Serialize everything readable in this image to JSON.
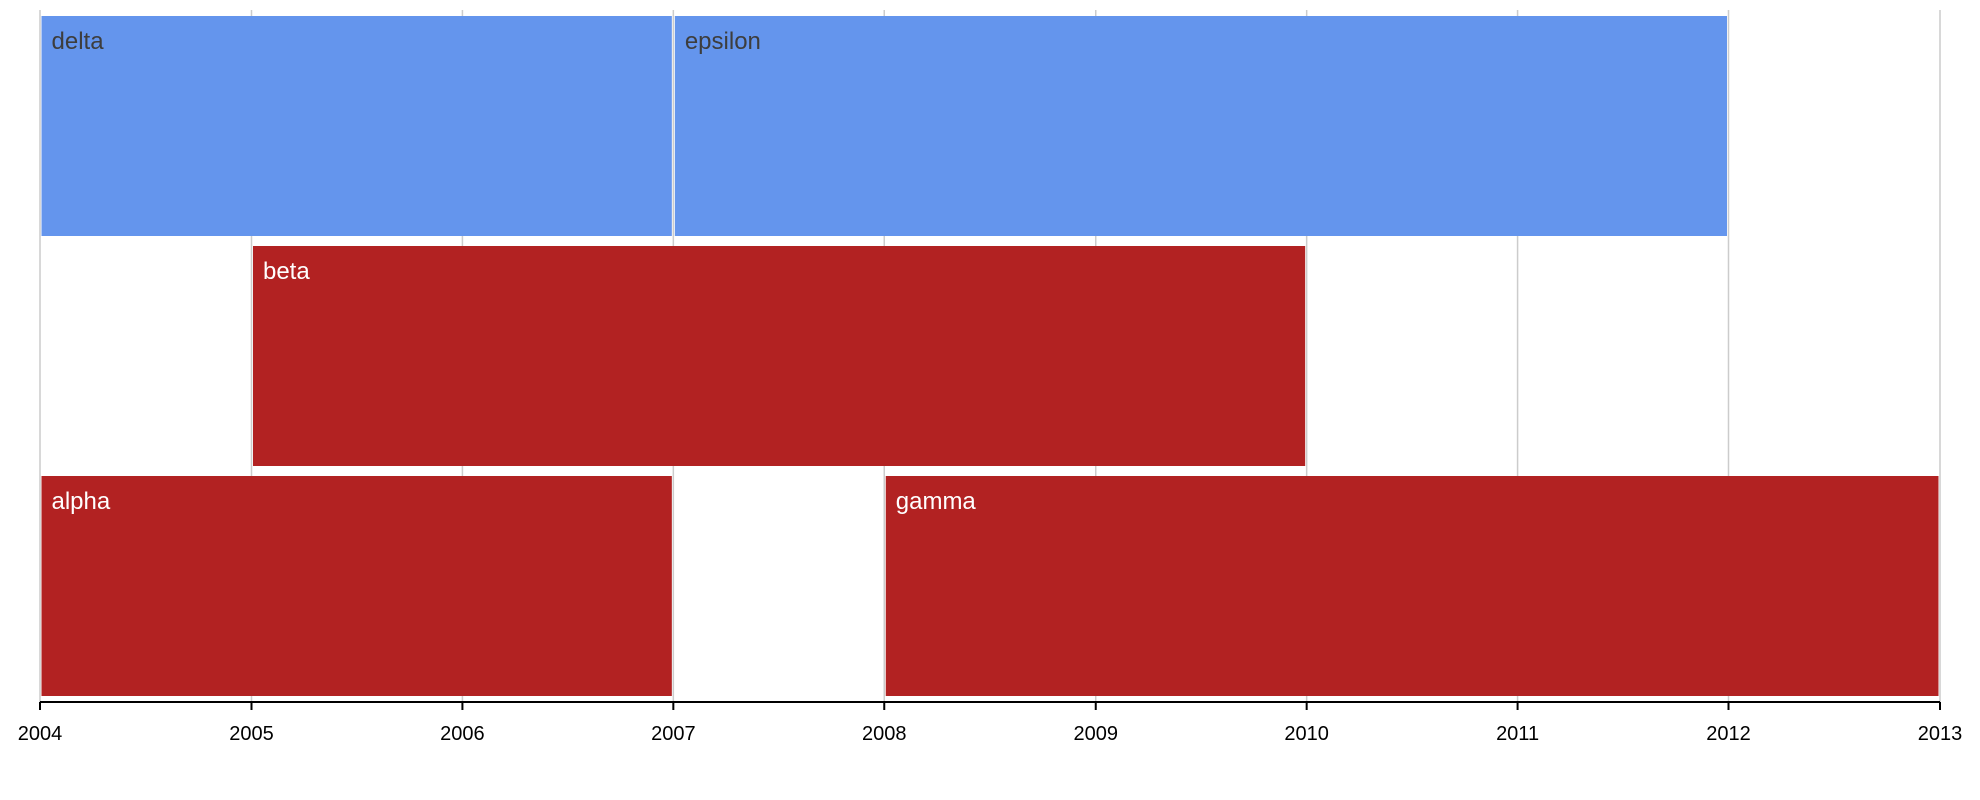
{
  "chart_data": {
    "type": "timeline",
    "x_axis": {
      "range": [
        "2004-01-01",
        "2013-01-01"
      ],
      "tick_labels": [
        "2004",
        "2005",
        "2006",
        "2007",
        "2008",
        "2009",
        "2010",
        "2011",
        "2012",
        "2013"
      ]
    },
    "grid": true,
    "rows": 3,
    "bars": [
      {
        "label": "delta",
        "row": 0,
        "start": "2004-01-01",
        "end": "2007-01-01",
        "color": "#6495ed",
        "label_color": "#3d3d3d"
      },
      {
        "label": "epsilon",
        "row": 0,
        "start": "2007-01-01",
        "end": "2012-01-01",
        "color": "#6495ed",
        "label_color": "#3d3d3d"
      },
      {
        "label": "beta",
        "row": 1,
        "start": "2005-01-01",
        "end": "2010-01-01",
        "color": "#b22222",
        "label_color": "#ffffff"
      },
      {
        "label": "alpha",
        "row": 2,
        "start": "2004-01-01",
        "end": "2007-01-01",
        "color": "#b22222",
        "label_color": "#ffffff"
      },
      {
        "label": "gamma",
        "row": 2,
        "start": "2008-01-01",
        "end": "2013-01-01",
        "color": "#b22222",
        "label_color": "#ffffff"
      }
    ]
  }
}
